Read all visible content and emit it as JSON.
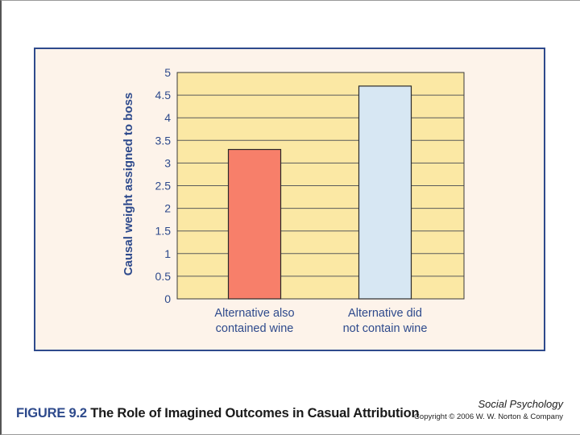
{
  "chart_data": {
    "type": "bar",
    "categories": [
      [
        "Alternative also",
        "contained wine"
      ],
      [
        "Alternative did",
        "not contain wine"
      ]
    ],
    "values": [
      3.3,
      4.7
    ],
    "bar_colors": [
      "#f77f6a",
      "#d7e7f3"
    ],
    "ylabel": "Causal weight assigned to boss",
    "ylim": [
      0,
      5
    ],
    "yticks": [
      "0",
      "0.5",
      "1",
      "1.5",
      "2",
      "2.5",
      "3",
      "3.5",
      "4",
      "4.5",
      "5"
    ],
    "grid": true,
    "plot_background": "#fbe8a4"
  },
  "caption": {
    "figure_number": "FIGURE 9.2",
    "title": "The Role of Imagined Outcomes in Casual Attribution"
  },
  "footer": {
    "book_title": "Social Psychology",
    "copyright": "Copyright © 2006 W. W. Norton & Company"
  }
}
